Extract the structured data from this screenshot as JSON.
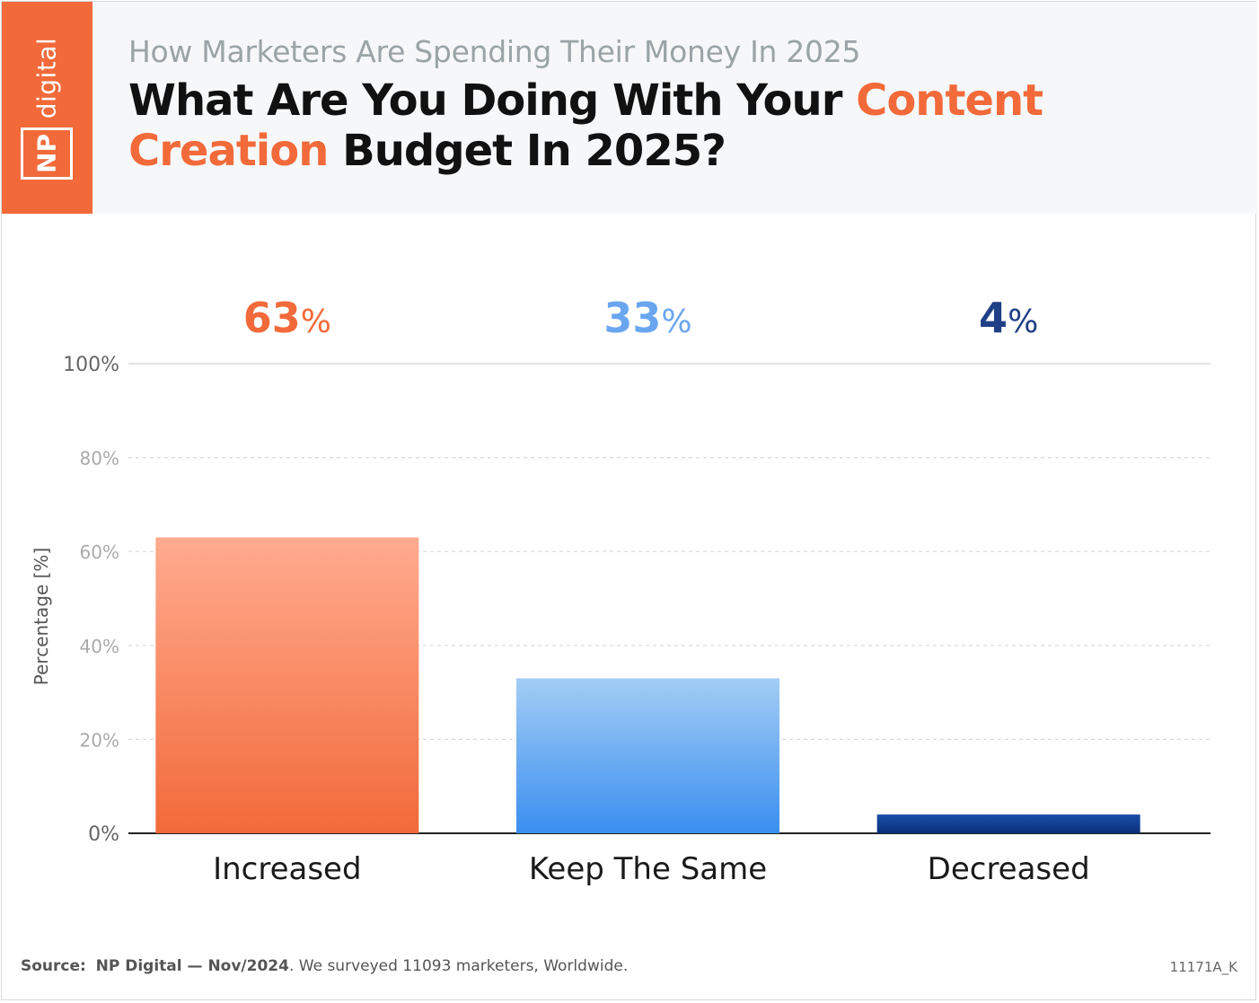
{
  "brand": {
    "logo_word": "digital",
    "logo_mark": "NP",
    "accent_color": "#f26a3a"
  },
  "header": {
    "subtitle": "How Marketers Are Spending Their Money In 2025",
    "title_part1": "What Are You Doing With Your ",
    "title_accent": "Content Creation",
    "title_part2": " Budget In 2025?"
  },
  "chart_data": {
    "type": "bar",
    "categories": [
      "Increased",
      "Keep The Same",
      "Decreased"
    ],
    "values": [
      63,
      33,
      4
    ],
    "value_labels": [
      "63",
      "33",
      "4"
    ],
    "value_suffix": "%",
    "colors": [
      {
        "top": "#ffab8f",
        "bottom": "#f26a3a",
        "label": "#f26a3a"
      },
      {
        "top": "#a3cdf5",
        "bottom": "#3a8ff0",
        "label": "#6aa6ef"
      },
      {
        "top": "#1a4fa8",
        "bottom": "#0a2f7a",
        "label": "#1f3f86"
      }
    ],
    "ylabel": "Percentage [%]",
    "ylim": [
      0,
      100
    ],
    "yticks": [
      0,
      20,
      40,
      60,
      80,
      100
    ],
    "ytick_labels": [
      "0%",
      "20%",
      "40%",
      "60%",
      "80%",
      "100%"
    ],
    "grid": true
  },
  "footer": {
    "source_label": "Source:",
    "source_name": "NP Digital — Nov/2024",
    "source_text": ". We surveyed 11093 marketers, Worldwide.",
    "code": "11171A_K"
  }
}
